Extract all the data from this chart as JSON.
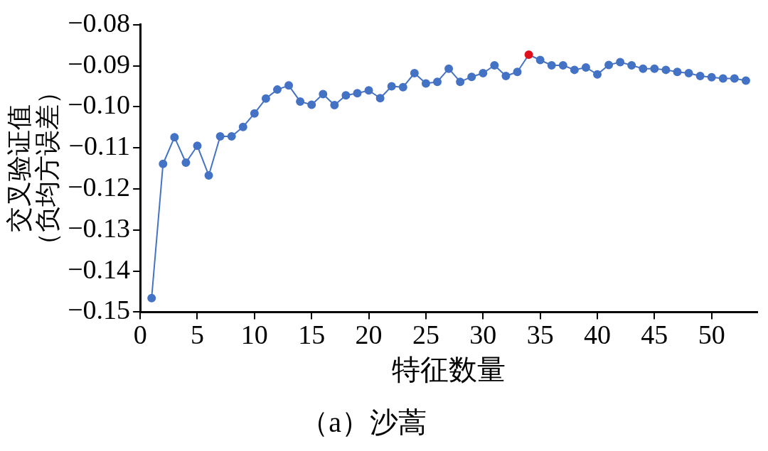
{
  "chart_data": {
    "type": "line",
    "xlabel": "特征数量",
    "ylabel": "交叉验证值（负均方误差）",
    "annotations": [
      "（a）沙蒿"
    ],
    "x": [
      1,
      2,
      3,
      4,
      5,
      6,
      7,
      8,
      9,
      10,
      11,
      12,
      13,
      14,
      15,
      16,
      17,
      18,
      19,
      20,
      21,
      22,
      23,
      24,
      25,
      26,
      27,
      28,
      29,
      30,
      31,
      32,
      33,
      34,
      35,
      36,
      37,
      38,
      39,
      40,
      41,
      42,
      43,
      44,
      45,
      46,
      47,
      48,
      49,
      50,
      51,
      52,
      53
    ],
    "series": [
      {
        "color": "#4472c4",
        "colors": [
          "#4472c4",
          "#4472c4",
          "#4472c4",
          "#4472c4",
          "#4472c4",
          "#4472c4",
          "#4472c4",
          "#4472c4",
          "#4472c4",
          "#4472c4",
          "#4472c4",
          "#4472c4",
          "#4472c4",
          "#4472c4",
          "#4472c4",
          "#4472c4",
          "#4472c4",
          "#4472c4",
          "#4472c4",
          "#4472c4",
          "#4472c4",
          "#4472c4",
          "#4472c4",
          "#4472c4",
          "#4472c4",
          "#4472c4",
          "#4472c4",
          "#4472c4",
          "#4472c4",
          "#4472c4",
          "#4472c4",
          "#4472c4",
          "#4472c4",
          "#e0101a",
          "#4472c4",
          "#4472c4",
          "#4472c4",
          "#4472c4",
          "#4472c4",
          "#4472c4",
          "#4472c4",
          "#4472c4",
          "#4472c4",
          "#4472c4",
          "#4472c4",
          "#4472c4",
          "#4472c4",
          "#4472c4",
          "#4472c4",
          "#4472c4",
          "#4472c4",
          "#4472c4",
          "#4472c4"
        ],
        "values": [
          -0.1466,
          -0.1139,
          -0.1074,
          -0.1136,
          -0.1095,
          -0.1167,
          -0.1072,
          -0.1072,
          -0.1049,
          -0.1016,
          -0.098,
          -0.0958,
          -0.0948,
          -0.0987,
          -0.0995,
          -0.0969,
          -0.0996,
          -0.0972,
          -0.0967,
          -0.096,
          -0.0979,
          -0.095,
          -0.0952,
          -0.0918,
          -0.0943,
          -0.0939,
          -0.0907,
          -0.0939,
          -0.0927,
          -0.0918,
          -0.0899,
          -0.0925,
          -0.0915,
          -0.0873,
          -0.0886,
          -0.0899,
          -0.0899,
          -0.091,
          -0.0904,
          -0.0921,
          -0.0898,
          -0.0891,
          -0.0899,
          -0.0907,
          -0.0907,
          -0.091,
          -0.0915,
          -0.0918,
          -0.0925,
          -0.0928,
          -0.0931,
          -0.0931,
          -0.0936
        ]
      }
    ],
    "xlim": [
      0,
      54
    ],
    "xticks": [
      0,
      5,
      10,
      15,
      20,
      25,
      30,
      35,
      40,
      45,
      50
    ],
    "ylim": [
      -0.15,
      -0.08
    ],
    "yticks": [
      {
        "value": -0.15,
        "label": "−0.15"
      },
      {
        "value": -0.14,
        "label": "−0.14"
      },
      {
        "value": -0.13,
        "label": "−0.13"
      },
      {
        "value": -0.12,
        "label": "−0.12"
      },
      {
        "value": -0.11,
        "label": "−0.11"
      },
      {
        "value": -0.1,
        "label": "−0.10"
      },
      {
        "value": -0.09,
        "label": "−0.09"
      },
      {
        "value": -0.08,
        "label": "−0.08"
      }
    ],
    "grid": false,
    "legend": false,
    "marker": "circle",
    "line_style": "solid"
  }
}
